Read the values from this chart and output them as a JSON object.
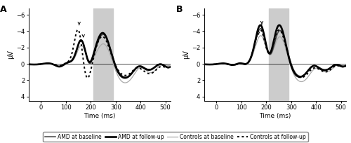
{
  "xlim": [
    -50,
    520
  ],
  "ylim": [
    4.5,
    -6.8
  ],
  "xticks": [
    0,
    100,
    200,
    300,
    400,
    500
  ],
  "yticks": [
    -6,
    -4,
    -2,
    0,
    2,
    4
  ],
  "xlabel": "Time (ms)",
  "ylabel": "μV",
  "shade_start": 210,
  "shade_end": 290,
  "legend_entries": [
    "AMD at baseline",
    "AMD at follow-up",
    "Controls at baseline",
    "Controls at follow-up"
  ],
  "panel_labels": [
    "A",
    "B"
  ],
  "background_color": "#ffffff",
  "shade_color": "#cccccc",
  "amd_baseline_color": "#444444",
  "amd_followup_color": "#000000",
  "controls_baseline_color": "#aaaaaa",
  "controls_followup_color": "#000000"
}
